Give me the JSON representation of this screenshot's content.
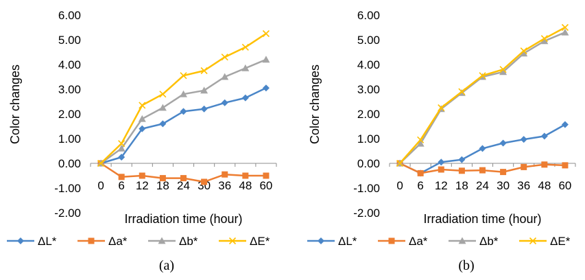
{
  "chart_data": [
    {
      "type": "line",
      "caption": "(a)",
      "xlabel": "Irradiation time (hour)",
      "ylabel": "Color changes",
      "x": [
        0,
        6,
        12,
        18,
        24,
        30,
        36,
        48,
        60
      ],
      "x_tick_labels": [
        "0",
        "6",
        "12",
        "18",
        "24",
        "30",
        "36",
        "48",
        "60"
      ],
      "ylim": [
        -2,
        6
      ],
      "y_tick_labels": [
        "-2.00",
        "-1.00",
        "0.00",
        "1.00",
        "2.00",
        "3.00",
        "4.00",
        "5.00",
        "6.00"
      ],
      "grid": false,
      "legend": "bottom",
      "series": [
        {
          "name": "ΔL*",
          "color": "#4a86c8",
          "marker": "diamond",
          "values": [
            0,
            0.25,
            1.4,
            1.6,
            2.1,
            2.2,
            2.45,
            2.65,
            3.05
          ]
        },
        {
          "name": "Δa*",
          "color": "#ed7d31",
          "marker": "square",
          "values": [
            0,
            -0.55,
            -0.5,
            -0.6,
            -0.6,
            -0.75,
            -0.45,
            -0.5,
            -0.5
          ]
        },
        {
          "name": "Δb*",
          "color": "#a5a5a5",
          "marker": "triangle",
          "values": [
            0,
            0.6,
            1.8,
            2.25,
            2.8,
            2.95,
            3.5,
            3.85,
            4.2
          ]
        },
        {
          "name": "ΔE*",
          "color": "#ffc000",
          "marker": "x",
          "values": [
            0,
            0.8,
            2.35,
            2.8,
            3.55,
            3.75,
            4.3,
            4.7,
            5.25
          ]
        }
      ]
    },
    {
      "type": "line",
      "caption": "(b)",
      "xlabel": "Irradiation time (hour)",
      "ylabel": "Color changes",
      "x": [
        0,
        6,
        12,
        18,
        24,
        30,
        36,
        48,
        60
      ],
      "x_tick_labels": [
        "0",
        "6",
        "12",
        "18",
        "24",
        "30",
        "36",
        "48",
        "60"
      ],
      "ylim": [
        -2,
        6
      ],
      "y_tick_labels": [
        "-2.00",
        "-1.00",
        "0.00",
        "1.00",
        "2.00",
        "3.00",
        "4.00",
        "5.00",
        "6.00"
      ],
      "grid": false,
      "legend": "bottom",
      "series": [
        {
          "name": "ΔL*",
          "color": "#4a86c8",
          "marker": "diamond",
          "values": [
            0,
            -0.4,
            0.05,
            0.15,
            0.6,
            0.82,
            0.97,
            1.1,
            1.57
          ]
        },
        {
          "name": "Δa*",
          "color": "#ed7d31",
          "marker": "square",
          "values": [
            0,
            -0.4,
            -0.25,
            -0.3,
            -0.28,
            -0.35,
            -0.15,
            -0.05,
            -0.08
          ]
        },
        {
          "name": "Δb*",
          "color": "#a5a5a5",
          "marker": "triangle",
          "values": [
            0,
            0.8,
            2.2,
            2.85,
            3.5,
            3.7,
            4.45,
            4.95,
            5.3
          ]
        },
        {
          "name": "ΔE*",
          "color": "#ffc000",
          "marker": "x",
          "values": [
            0,
            0.95,
            2.25,
            2.9,
            3.55,
            3.8,
            4.55,
            5.05,
            5.5
          ]
        }
      ]
    }
  ]
}
